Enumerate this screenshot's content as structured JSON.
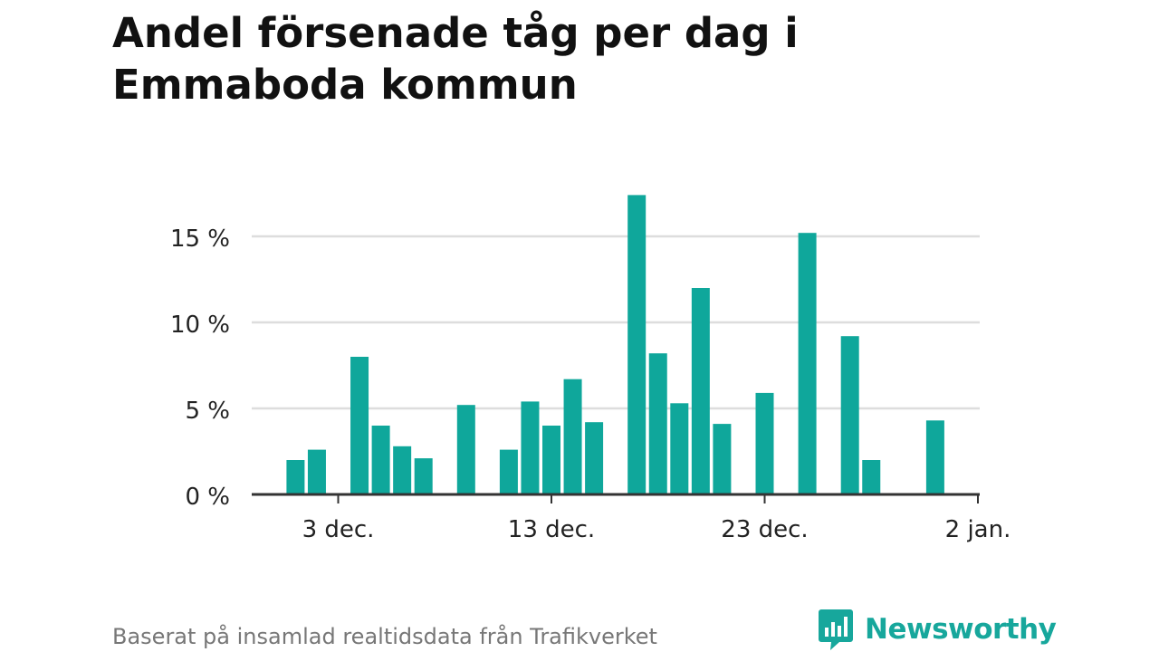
{
  "title": "Andel försenade tåg per dag i Emmaboda kommun",
  "source": "Baserat på insamlad realtidsdata från Trafikverket",
  "brand": {
    "name": "Newsworthy",
    "icon": "newsworthy-logo-icon"
  },
  "colors": {
    "bar": "#0fa79b",
    "grid": "#dddddd",
    "axis": "#333333",
    "text": "#222222",
    "brand": "#17a79c"
  },
  "chart_data": {
    "type": "bar",
    "title": "Andel försenade tåg per dag i Emmaboda kommun",
    "xlabel": "",
    "ylabel": "",
    "x_ticks": [
      {
        "day": 3,
        "label": "3 dec."
      },
      {
        "day": 13,
        "label": "13 dec."
      },
      {
        "day": 23,
        "label": "23 dec."
      },
      {
        "day": 33,
        "label": "2 jan."
      }
    ],
    "xlim": [
      -1,
      33
    ],
    "y_ticks": [
      {
        "value": 0,
        "label": "0 %"
      },
      {
        "value": 5,
        "label": "5 %"
      },
      {
        "value": 10,
        "label": "10 %"
      },
      {
        "value": 15,
        "label": "15 %"
      }
    ],
    "ylim": [
      0,
      18
    ],
    "grid": true,
    "bars": [
      {
        "day": 1,
        "value": 2.0
      },
      {
        "day": 2,
        "value": 2.6
      },
      {
        "day": 4,
        "value": 8.0
      },
      {
        "day": 5,
        "value": 4.0
      },
      {
        "day": 6,
        "value": 2.8
      },
      {
        "day": 7,
        "value": 2.1
      },
      {
        "day": 9,
        "value": 5.2
      },
      {
        "day": 11,
        "value": 2.6
      },
      {
        "day": 12,
        "value": 5.4
      },
      {
        "day": 13,
        "value": 4.0
      },
      {
        "day": 14,
        "value": 6.7
      },
      {
        "day": 15,
        "value": 4.2
      },
      {
        "day": 17,
        "value": 17.4
      },
      {
        "day": 18,
        "value": 8.2
      },
      {
        "day": 19,
        "value": 5.3
      },
      {
        "day": 20,
        "value": 12.0
      },
      {
        "day": 21,
        "value": 4.1
      },
      {
        "day": 23,
        "value": 5.9
      },
      {
        "day": 25,
        "value": 15.2
      },
      {
        "day": 27,
        "value": 9.2
      },
      {
        "day": 28,
        "value": 2.0
      },
      {
        "day": 31,
        "value": 4.3
      }
    ]
  }
}
